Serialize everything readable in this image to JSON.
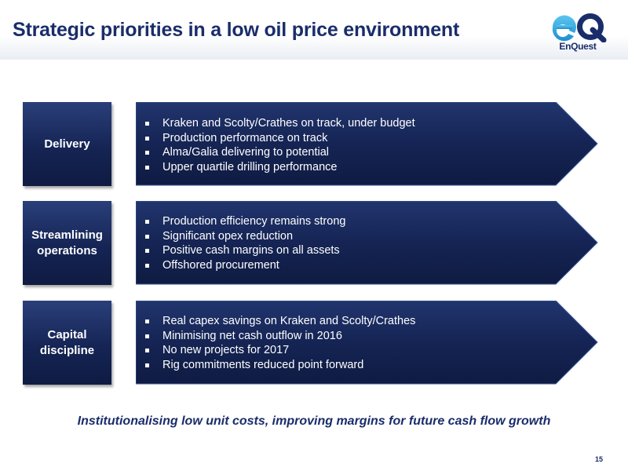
{
  "slide": {
    "title": "Strategic priorities in a low oil price environment",
    "logo": {
      "mark": "eQ",
      "name": "EnQuest",
      "icon": "enquest-logo"
    },
    "colors": {
      "navy": "#152454",
      "title": "#1a2d6b",
      "accent": "#3fb0e3"
    },
    "sections": [
      {
        "label": "Delivery",
        "bullets": [
          "Kraken and Scolty/Crathes on track, under budget",
          "Production performance on track",
          "Alma/Galia delivering to potential",
          "Upper quartile drilling performance"
        ]
      },
      {
        "label": "Streamlining operations",
        "bullets": [
          "Production efficiency remains strong",
          "Significant opex reduction",
          "Positive cash margins on all assets",
          "Offshored procurement"
        ]
      },
      {
        "label": "Capital discipline",
        "bullets": [
          "Real capex savings on Kraken and Scolty/Crathes",
          "Minimising net cash outflow in 2016",
          "No new projects for 2017",
          "Rig commitments reduced point forward"
        ]
      }
    ],
    "tagline": "Institutionalising low unit costs, improving margins for future cash flow growth",
    "page_number": "15"
  }
}
